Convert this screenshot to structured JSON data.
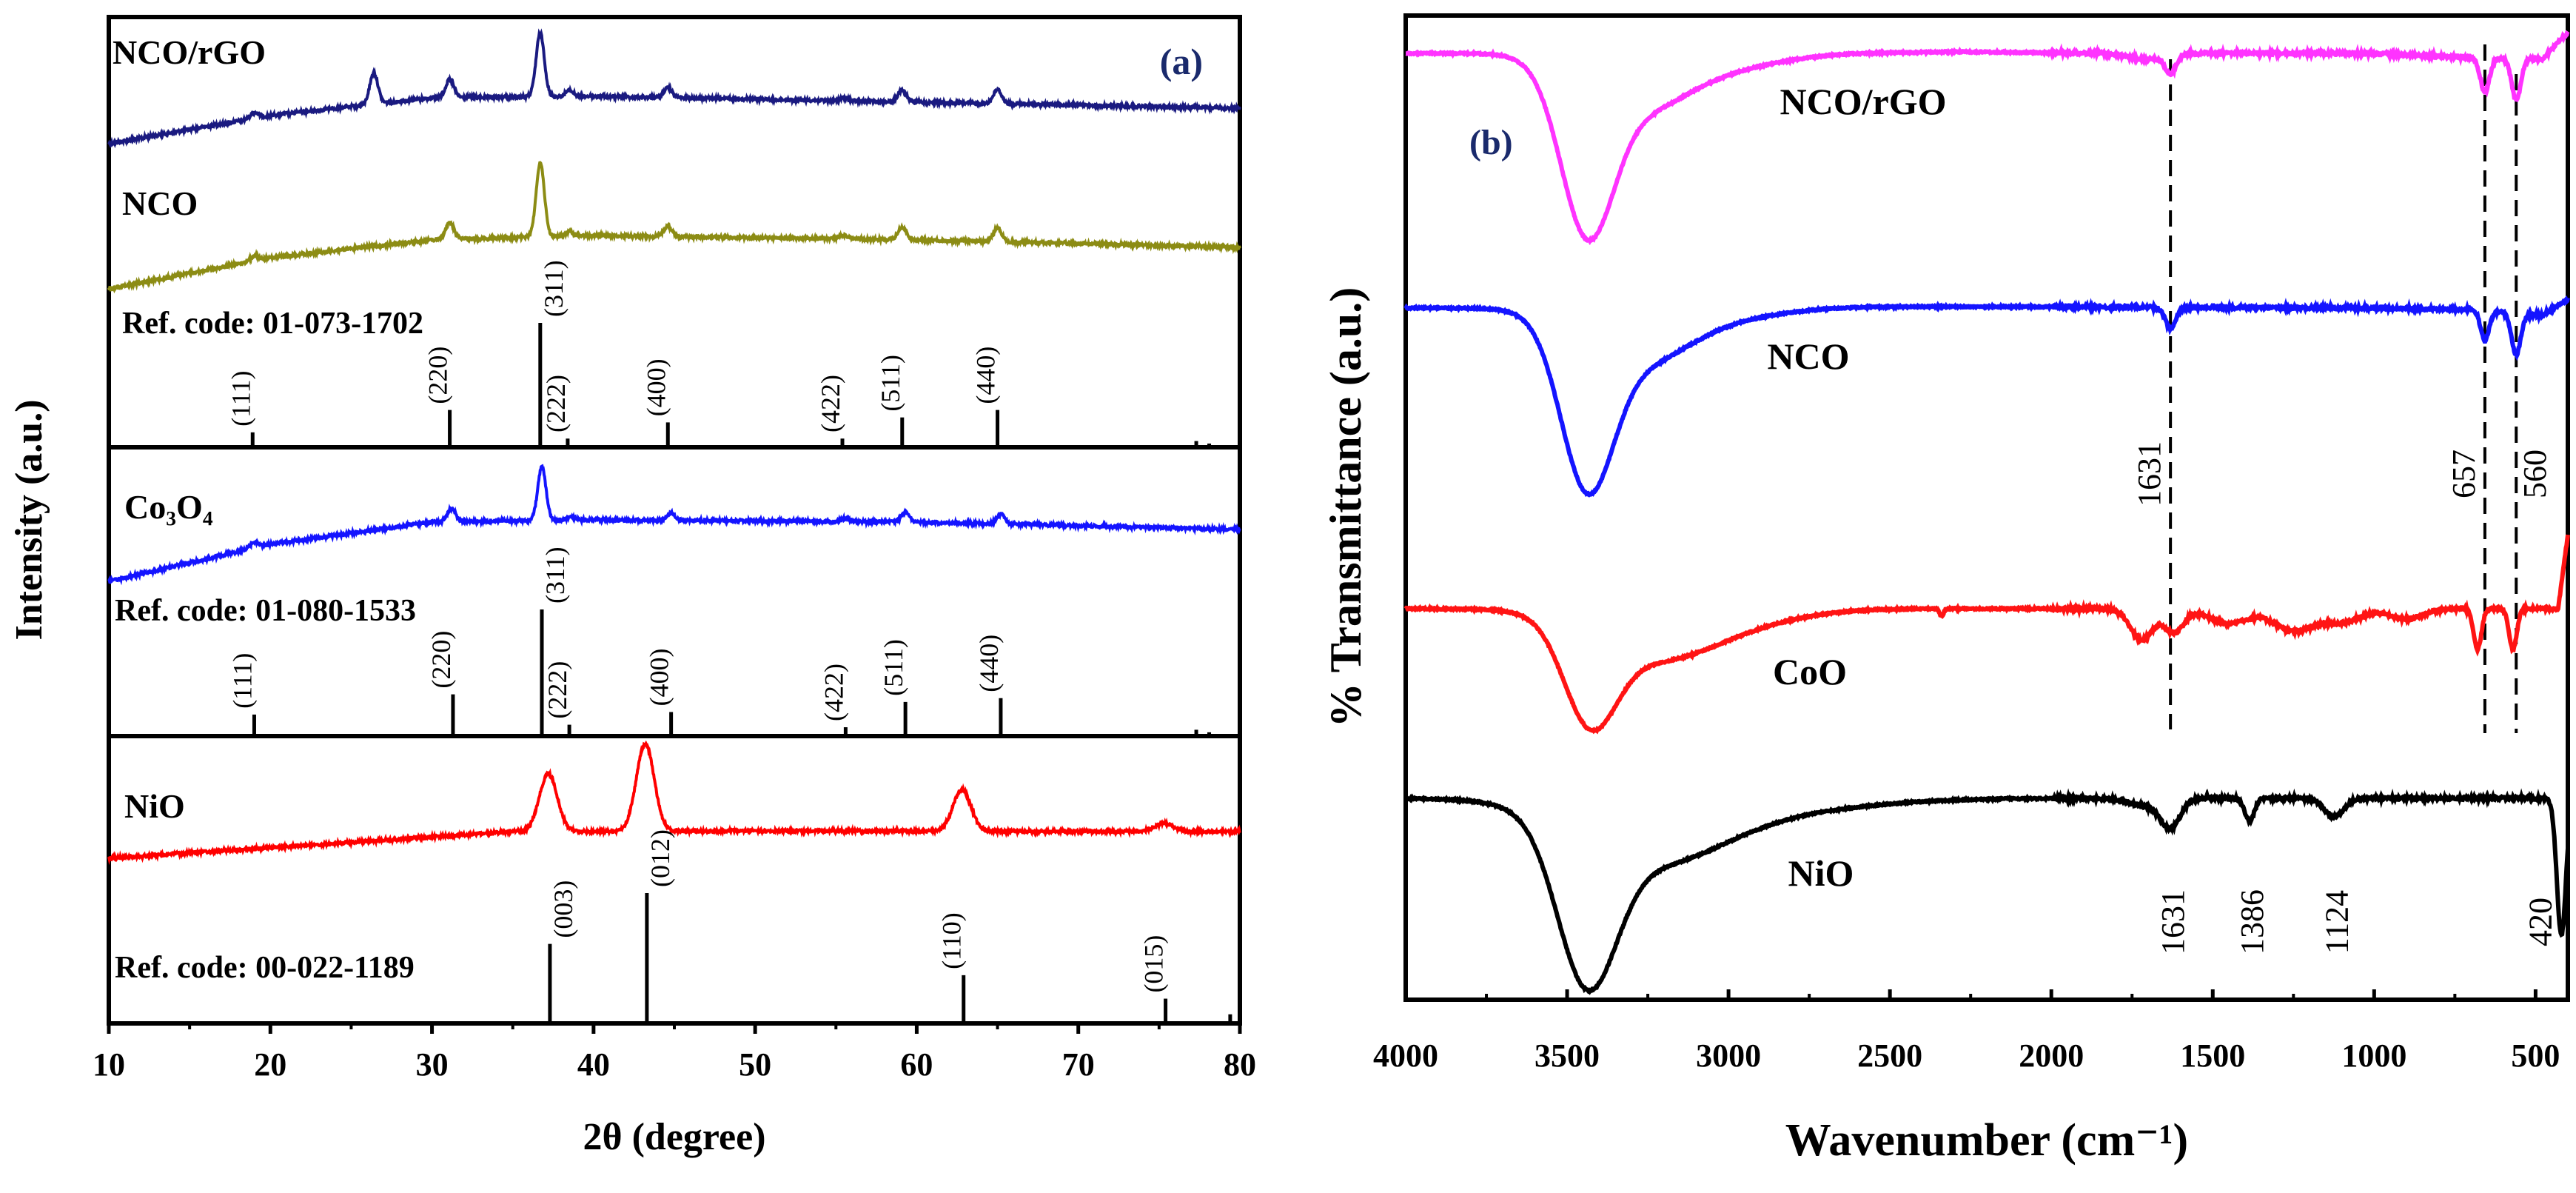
{
  "chart_data": [
    {
      "type": "line",
      "panel_label": "(a)",
      "xlabel": "2θ (degree)",
      "ylabel": "Intensity (a.u.)",
      "xlim": [
        10,
        80
      ],
      "xticks": [
        "10",
        "20",
        "30",
        "40",
        "50",
        "60",
        "70",
        "80"
      ],
      "grid": false,
      "series": [
        {
          "name": "NCO/rGO",
          "color": "#1a1a80",
          "fwhm": 0.6,
          "background": [
            [
              10,
              0
            ],
            [
              20,
              38
            ],
            [
              30,
              62
            ],
            [
              40,
              64
            ],
            [
              60,
              56
            ],
            [
              80,
              48
            ]
          ],
          "peaks": [
            [
              19.0,
              8
            ],
            [
              26.4,
              42
            ],
            [
              31.1,
              24
            ],
            [
              36.7,
              86
            ],
            [
              38.5,
              8
            ],
            [
              44.6,
              13
            ],
            [
              55.5,
              4
            ],
            [
              59.1,
              16
            ],
            [
              65.0,
              19
            ]
          ]
        },
        {
          "name": "NCO",
          "color": "#8c8c14",
          "fwhm": 0.6,
          "background": [
            [
              10,
              0
            ],
            [
              20,
              42
            ],
            [
              30,
              66
            ],
            [
              40,
              72
            ],
            [
              60,
              66
            ],
            [
              80,
              56
            ]
          ],
          "peaks": [
            [
              19.0,
              7
            ],
            [
              31.1,
              23
            ],
            [
              36.7,
              100
            ],
            [
              38.5,
              6
            ],
            [
              44.6,
              14
            ],
            [
              55.5,
              5
            ],
            [
              59.1,
              17
            ],
            [
              65.0,
              19
            ]
          ]
        },
        {
          "name": "Co₃O₄",
          "color": "#1414ff",
          "fwhm": 0.6,
          "background": [
            [
              10,
              0
            ],
            [
              20,
              50
            ],
            [
              30,
              80
            ],
            [
              40,
              83
            ],
            [
              60,
              80
            ],
            [
              80,
              70
            ]
          ],
          "peaks": [
            [
              19.0,
              8
            ],
            [
              31.2,
              18
            ],
            [
              36.8,
              72
            ],
            [
              38.6,
              5
            ],
            [
              44.8,
              10
            ],
            [
              55.6,
              4
            ],
            [
              59.3,
              13
            ],
            [
              65.2,
              13
            ]
          ]
        },
        {
          "name": "NiO",
          "color": "#ff0000",
          "fwhm": 1.3,
          "background": [
            [
              10,
              0
            ],
            [
              35,
              36
            ],
            [
              50,
              37
            ],
            [
              80,
              36
            ]
          ],
          "peaks": [
            [
              37.2,
              78
            ],
            [
              43.2,
              118
            ],
            [
              62.8,
              56
            ],
            [
              75.3,
              11
            ]
          ]
        }
      ],
      "references": [
        {
          "label": "Ref. code: 01-073-1702",
          "sticks": [
            {
              "two_theta": 18.9,
              "intensity": 12,
              "hkl": "(111)"
            },
            {
              "two_theta": 31.1,
              "intensity": 30,
              "hkl": "(220)"
            },
            {
              "two_theta": 36.7,
              "intensity": 100,
              "hkl": "(311)"
            },
            {
              "two_theta": 38.4,
              "intensity": 7,
              "hkl": "(222)"
            },
            {
              "two_theta": 44.6,
              "intensity": 20,
              "hkl": "(400)"
            },
            {
              "two_theta": 55.4,
              "intensity": 7,
              "hkl": "(422)"
            },
            {
              "two_theta": 59.1,
              "intensity": 24,
              "hkl": "(511)"
            },
            {
              "two_theta": 65.0,
              "intensity": 30,
              "hkl": "(440)"
            },
            {
              "two_theta": 77.3,
              "intensity": 5,
              "hkl": ""
            },
            {
              "two_theta": 78.1,
              "intensity": 3,
              "hkl": ""
            }
          ]
        },
        {
          "label": "Ref. code: 01-080-1533",
          "sticks": [
            {
              "two_theta": 19.0,
              "intensity": 17,
              "hkl": "(111)"
            },
            {
              "two_theta": 31.3,
              "intensity": 33,
              "hkl": "(220)"
            },
            {
              "two_theta": 36.8,
              "intensity": 100,
              "hkl": "(311)"
            },
            {
              "two_theta": 38.5,
              "intensity": 9,
              "hkl": "(222)"
            },
            {
              "two_theta": 44.8,
              "intensity": 19,
              "hkl": "(400)"
            },
            {
              "two_theta": 55.6,
              "intensity": 7,
              "hkl": "(422)"
            },
            {
              "two_theta": 59.3,
              "intensity": 27,
              "hkl": "(511)"
            },
            {
              "two_theta": 65.2,
              "intensity": 30,
              "hkl": "(440)"
            },
            {
              "two_theta": 77.3,
              "intensity": 5,
              "hkl": ""
            },
            {
              "two_theta": 78.1,
              "intensity": 3,
              "hkl": ""
            }
          ]
        },
        {
          "label": "Ref. code: 00-022-1189",
          "sticks": [
            {
              "two_theta": 37.3,
              "intensity": 61,
              "hkl": "(003)"
            },
            {
              "two_theta": 43.3,
              "intensity": 100,
              "hkl": "(012)"
            },
            {
              "two_theta": 62.9,
              "intensity": 37,
              "hkl": "(110)"
            },
            {
              "two_theta": 75.4,
              "intensity": 19,
              "hkl": "(015)"
            },
            {
              "two_theta": 79.4,
              "intensity": 7,
              "hkl": ""
            }
          ]
        }
      ]
    },
    {
      "type": "line",
      "panel_label": "(b)",
      "xlabel": "Wavenumber (cm⁻¹)",
      "ylabel": "% Transmittance (a.u.)",
      "xlim": [
        4000,
        400
      ],
      "xticks": [
        "4000",
        "3500",
        "3000",
        "2500",
        "2000",
        "1500",
        "1000",
        "500"
      ],
      "grid": false,
      "series": [
        {
          "name": "NCO/rGO",
          "color": "#ff33ff",
          "baseline": [
            [
              4000,
              0
            ],
            [
              3700,
              0
            ],
            [
              3000,
              -2
            ],
            [
              2300,
              2
            ],
            [
              1800,
              0
            ],
            [
              1000,
              0
            ],
            [
              700,
              -6
            ],
            [
              480,
              -8
            ],
            [
              400,
              28
            ]
          ],
          "dips": [
            [
              3440,
              205,
              80
            ],
            [
              3280,
              75,
              160
            ],
            [
              2950,
              12,
              150
            ],
            [
              1700,
              8,
              60
            ],
            [
              1631,
              24,
              16
            ],
            [
              657,
              46,
              14
            ],
            [
              560,
              56,
              14
            ]
          ]
        },
        {
          "name": "NCO",
          "color": "#1414ff",
          "baseline": [
            [
              4000,
              0
            ],
            [
              3700,
              0
            ],
            [
              2300,
              2
            ],
            [
              1000,
              0
            ],
            [
              700,
              -2
            ],
            [
              480,
              -10
            ],
            [
              400,
              12
            ]
          ],
          "dips": [
            [
              3440,
              205,
              80
            ],
            [
              3280,
              75,
              160
            ],
            [
              2950,
              10,
              150
            ],
            [
              1631,
              28,
              16
            ],
            [
              657,
              40,
              13
            ],
            [
              560,
              56,
              14
            ]
          ]
        },
        {
          "name": "CoO",
          "color": "#ff1414",
          "baseline": [
            [
              4000,
              0
            ],
            [
              3700,
              0
            ],
            [
              2400,
              0
            ],
            [
              700,
              0
            ],
            [
              430,
              0
            ],
            [
              400,
              100
            ]
          ],
          "dips": [
            [
              3430,
              125,
              80
            ],
            [
              3250,
              60,
              180
            ],
            [
              3000,
              20,
              200
            ],
            [
              2340,
              10,
              6
            ],
            [
              1720,
              42,
              35
            ],
            [
              1620,
              32,
              30
            ],
            [
              1450,
              20,
              60
            ],
            [
              1250,
              30,
              60
            ],
            [
              1100,
              18,
              60
            ],
            [
              900,
              14,
              50
            ],
            [
              680,
              55,
              12
            ],
            [
              570,
              55,
              12
            ]
          ]
        },
        {
          "name": "NiO",
          "color": "#000000",
          "baseline": [
            [
              4000,
              0
            ],
            [
              3700,
              0
            ],
            [
              1000,
              0
            ],
            [
              520,
              0
            ],
            [
              400,
              0
            ]
          ],
          "dips": [
            [
              3440,
              200,
              90
            ],
            [
              3250,
              80,
              220
            ],
            [
              2900,
              18,
              300
            ],
            [
              1700,
              10,
              60
            ],
            [
              1631,
              35,
              30
            ],
            [
              1386,
              30,
              15
            ],
            [
              1124,
              25,
              30
            ],
            [
              420,
              185,
              14
            ]
          ]
        }
      ],
      "reference_lines": [
        1631,
        657,
        560
      ],
      "annotations": [
        {
          "text": "1631",
          "series": "NCO"
        },
        {
          "text": "657",
          "series": "NCO"
        },
        {
          "text": "560",
          "series": "NCO"
        },
        {
          "text": "1631",
          "series": "NiO"
        },
        {
          "text": "1386",
          "series": "NiO"
        },
        {
          "text": "1124",
          "series": "NiO"
        },
        {
          "text": "420",
          "series": "NiO"
        }
      ]
    }
  ]
}
